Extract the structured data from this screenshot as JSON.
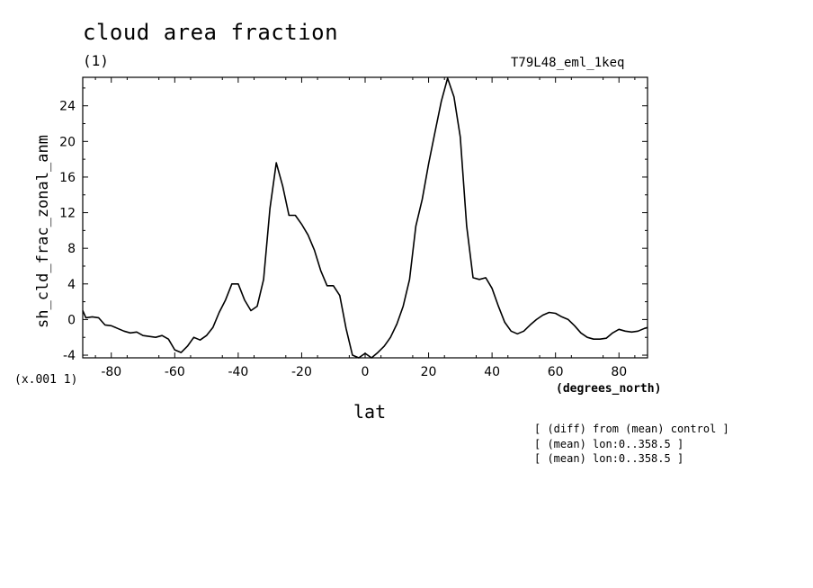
{
  "header": {
    "title": "cloud area fraction",
    "units": "(1)",
    "run_name": "T79L48_eml_1keq"
  },
  "axes": {
    "y_scale_note": "(x.001 1)",
    "x_units": "(degrees_north)"
  },
  "notes": [
    "[ (diff) from (mean) control ]",
    "[ (mean) lon:0..358.5 ]",
    "[ (mean) lon:0..358.5 ]"
  ],
  "chart_data": {
    "type": "line",
    "title": "cloud area fraction",
    "xlabel": "lat",
    "ylabel": "sh_cld_frac_zonal_anm",
    "xlim": [
      -89,
      89
    ],
    "ylim": [
      -4.3,
      27.2
    ],
    "x_ticks": [
      -80,
      -60,
      -40,
      -20,
      0,
      20,
      40,
      60,
      80
    ],
    "x_tick_labels": [
      "-80",
      "-60",
      "-40",
      "-20",
      "0",
      "20",
      "40",
      "60",
      "80"
    ],
    "y_ticks": [
      -4,
      0,
      4,
      8,
      12,
      16,
      20,
      24
    ],
    "y_tick_labels": [
      "-4",
      "0",
      "4",
      "8",
      "12",
      "16",
      "20",
      "24"
    ],
    "grid": false,
    "series": [
      {
        "x": [
          -89,
          -88,
          -86,
          -84,
          -82,
          -80,
          -78,
          -76,
          -74,
          -72,
          -70,
          -68,
          -66,
          -64,
          -62,
          -60,
          -58,
          -56,
          -54,
          -52,
          -50,
          -48,
          -46,
          -44,
          -42,
          -40,
          -38,
          -36,
          -34,
          -32,
          -30,
          -28,
          -26,
          -24,
          -22,
          -20,
          -18,
          -16,
          -14,
          -12,
          -10,
          -8,
          -6,
          -4,
          -2,
          0,
          2,
          4,
          6,
          8,
          10,
          12,
          14,
          16,
          18,
          20,
          22,
          24,
          26,
          28,
          30,
          32,
          34,
          36,
          38,
          40,
          42,
          44,
          46,
          48,
          50,
          52,
          54,
          56,
          58,
          60,
          62,
          64,
          66,
          68,
          70,
          72,
          74,
          76,
          78,
          80,
          82,
          84,
          86,
          88,
          89
        ],
        "y": [
          1.0,
          0.2,
          0.3,
          0.2,
          -0.6,
          -0.7,
          -1.0,
          -1.3,
          -1.5,
          -1.4,
          -1.8,
          -1.9,
          -2.0,
          -1.8,
          -2.2,
          -3.4,
          -3.7,
          -3.0,
          -2.0,
          -2.3,
          -1.8,
          -0.9,
          0.8,
          2.2,
          4.0,
          4.0,
          2.2,
          1.0,
          1.5,
          4.5,
          12.5,
          17.6,
          15.0,
          11.7,
          11.7,
          10.7,
          9.5,
          7.8,
          5.5,
          3.8,
          3.8,
          2.7,
          -1.0,
          -4.0,
          -4.3,
          -3.8,
          -4.3,
          -3.7,
          -3.0,
          -2.0,
          -0.5,
          1.5,
          4.5,
          10.5,
          13.5,
          17.5,
          21.0,
          24.5,
          27.1,
          25.0,
          20.5,
          10.5,
          4.7,
          4.5,
          4.7,
          3.5,
          1.5,
          -0.3,
          -1.3,
          -1.6,
          -1.3,
          -0.6,
          0.0,
          0.5,
          0.8,
          0.7,
          0.3,
          0.0,
          -0.7,
          -1.5,
          -2.0,
          -2.2,
          -2.2,
          -2.1,
          -1.5,
          -1.1,
          -1.3,
          -1.4,
          -1.3,
          -1.0,
          -0.9
        ]
      }
    ]
  }
}
